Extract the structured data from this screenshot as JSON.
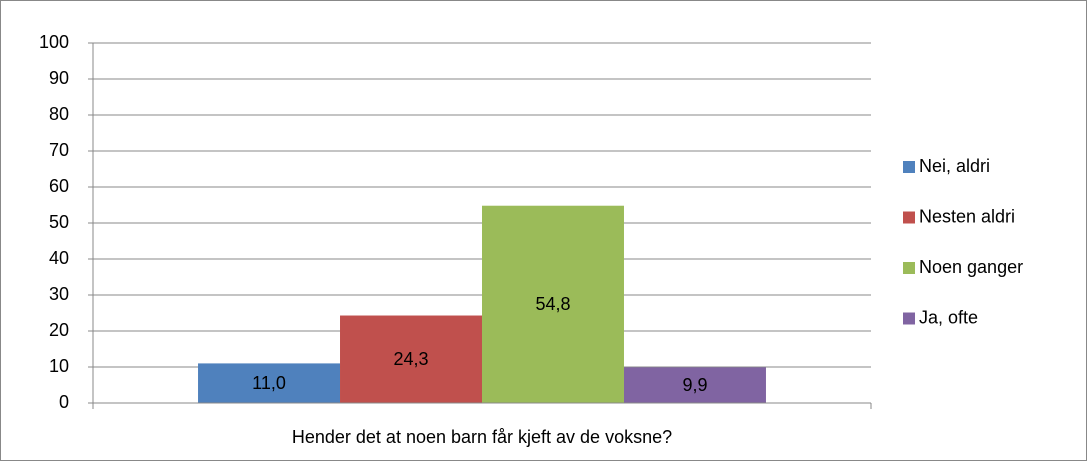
{
  "chart_data": {
    "type": "bar",
    "categories": [
      "Hender det at noen barn får kjeft av de voksne?"
    ],
    "series": [
      {
        "name": "Nei, aldri",
        "color": "#4f81bd",
        "values": [
          11.0
        ],
        "value_labels": [
          "11,0"
        ]
      },
      {
        "name": "Nesten aldri",
        "color": "#c0504d",
        "values": [
          24.3
        ],
        "value_labels": [
          "24,3"
        ]
      },
      {
        "name": "Noen ganger",
        "color": "#9bbb59",
        "values": [
          54.8
        ],
        "value_labels": [
          "54,8"
        ]
      },
      {
        "name": "Ja, ofte",
        "color": "#8064a2",
        "values": [
          9.9
        ],
        "value_labels": [
          "9,9"
        ]
      }
    ],
    "ylim": [
      0,
      100
    ],
    "yticks": [
      0,
      10,
      20,
      30,
      40,
      50,
      60,
      70,
      80,
      90,
      100
    ],
    "grid": true,
    "legend": "right"
  }
}
